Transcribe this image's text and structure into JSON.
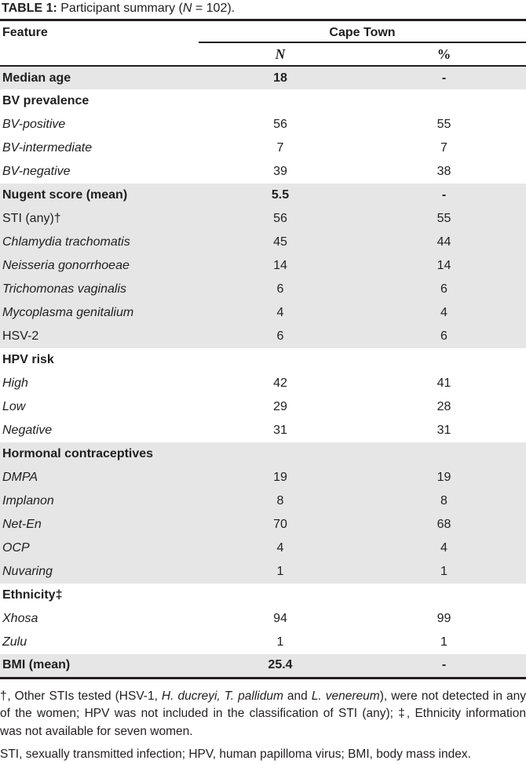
{
  "title": {
    "segments": [
      {
        "text": "TABLE 1:",
        "bold": true
      },
      {
        "text": " Participant summary ("
      },
      {
        "text": "N",
        "italic": true
      },
      {
        "text": " = 102)."
      }
    ]
  },
  "table": {
    "feature_header": "Feature",
    "group_header": "Cape Town",
    "col_headers": [
      "N",
      "%"
    ],
    "rows": [
      {
        "label": "Median age",
        "n": "18",
        "pct": "-",
        "bold": true,
        "italic": false,
        "shaded": true
      },
      {
        "label": "BV prevalence",
        "n": "",
        "pct": "",
        "bold": true,
        "italic": false,
        "shaded": false
      },
      {
        "label": "BV-positive",
        "n": "56",
        "pct": "55",
        "bold": false,
        "italic": true,
        "shaded": false
      },
      {
        "label": "BV-intermediate",
        "n": "7",
        "pct": "7",
        "bold": false,
        "italic": true,
        "shaded": false
      },
      {
        "label": "BV-negative",
        "n": "39",
        "pct": "38",
        "bold": false,
        "italic": true,
        "shaded": false
      },
      {
        "label": "Nugent score (mean)",
        "n": "5.5",
        "pct": "-",
        "bold": true,
        "italic": false,
        "shaded": true
      },
      {
        "label": "STI (any)†",
        "n": "56",
        "pct": "55",
        "bold": false,
        "italic": false,
        "shaded": true
      },
      {
        "label": "Chlamydia trachomatis",
        "n": "45",
        "pct": "44",
        "bold": false,
        "italic": true,
        "shaded": true
      },
      {
        "label": "Neisseria gonorrhoeae",
        "n": "14",
        "pct": "14",
        "bold": false,
        "italic": true,
        "shaded": true
      },
      {
        "label": "Trichomonas vaginalis",
        "n": "6",
        "pct": "6",
        "bold": false,
        "italic": true,
        "shaded": true
      },
      {
        "label": "Mycoplasma genitalium",
        "n": "4",
        "pct": "4",
        "bold": false,
        "italic": true,
        "shaded": true
      },
      {
        "label": "HSV-2",
        "n": "6",
        "pct": "6",
        "bold": false,
        "italic": false,
        "shaded": true
      },
      {
        "label": "HPV risk",
        "n": "",
        "pct": "",
        "bold": true,
        "italic": false,
        "shaded": false
      },
      {
        "label": "High",
        "n": "42",
        "pct": "41",
        "bold": false,
        "italic": true,
        "shaded": false
      },
      {
        "label": "Low",
        "n": "29",
        "pct": "28",
        "bold": false,
        "italic": true,
        "shaded": false
      },
      {
        "label": "Negative",
        "n": "31",
        "pct": "31",
        "bold": false,
        "italic": true,
        "shaded": false
      },
      {
        "label": "Hormonal contraceptives",
        "n": "",
        "pct": "",
        "bold": true,
        "italic": false,
        "shaded": true
      },
      {
        "label": "DMPA",
        "n": "19",
        "pct": "19",
        "bold": false,
        "italic": true,
        "shaded": true
      },
      {
        "label": "Implanon",
        "n": "8",
        "pct": "8",
        "bold": false,
        "italic": true,
        "shaded": true
      },
      {
        "label": "Net-En",
        "n": "70",
        "pct": "68",
        "bold": false,
        "italic": true,
        "shaded": true
      },
      {
        "label": "OCP",
        "n": "4",
        "pct": "4",
        "bold": false,
        "italic": true,
        "shaded": true
      },
      {
        "label": "Nuvaring",
        "n": "1",
        "pct": "1",
        "bold": false,
        "italic": true,
        "shaded": true
      },
      {
        "label": "Ethnicity‡",
        "n": "",
        "pct": "",
        "bold": true,
        "italic": false,
        "shaded": false
      },
      {
        "label": "Xhosa",
        "n": "94",
        "pct": "99",
        "bold": false,
        "italic": true,
        "shaded": false
      },
      {
        "label": "Zulu",
        "n": "1",
        "pct": "1",
        "bold": false,
        "italic": true,
        "shaded": false
      },
      {
        "label": "BMI (mean)",
        "n": "25.4",
        "pct": "-",
        "bold": true,
        "italic": false,
        "shaded": true
      }
    ]
  },
  "footnotes": {
    "note1_segments": [
      {
        "text": "†, Other STIs tested (HSV-1, "
      },
      {
        "text": "H. ducreyi, T. pallidum",
        "italic": true
      },
      {
        "text": " and "
      },
      {
        "text": "L. venereum",
        "italic": true
      },
      {
        "text": "), were not detected in any of the women; HPV was not included in the classification of STI (any); ‡, Ethnicity information was not available for seven women."
      }
    ],
    "note2": "STI, sexually transmitted infection; HPV, human papilloma virus; BMI, body mass index."
  },
  "colors": {
    "shaded_row": "#e6e6e6",
    "border": "#231f20",
    "text": "#1f1f1f"
  }
}
